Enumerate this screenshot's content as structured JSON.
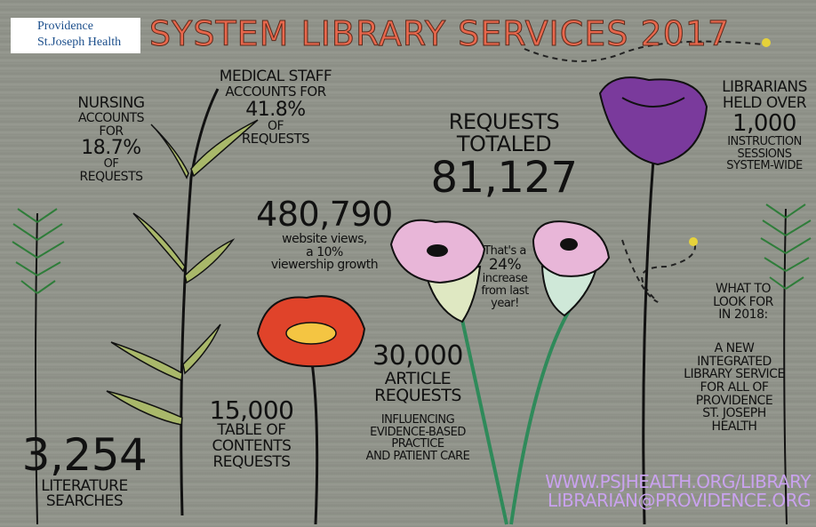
{
  "logo": {
    "line1": "Providence",
    "line2": "St.Joseph Health"
  },
  "title": "SYSTEM LIBRARY SERVICES 2017",
  "blocks": {
    "nursing": [
      "NURSING",
      "ACCOUNTS",
      "FOR",
      "18.7%",
      "OF",
      "REQUESTS"
    ],
    "medical": [
      "MEDICAL STAFF",
      "ACCOUNTS FOR",
      "41.8%",
      "OF",
      "REQUESTS"
    ],
    "website": [
      "480,790",
      "website views,",
      "a 10%",
      "viewership growth"
    ],
    "requests": [
      "REQUESTS",
      "TOTALED",
      "81,127"
    ],
    "increase": [
      "That's a",
      "24%",
      "increase",
      "from last",
      "year!"
    ],
    "librarians": [
      "LIBRARIANS",
      "HELD OVER",
      "1,000",
      "INSTRUCTION",
      "SESSIONS",
      "SYSTEM-WIDE"
    ],
    "articles": [
      "30,000",
      "ARTICLE",
      "REQUESTS"
    ],
    "influencing": [
      "INFLUENCING",
      "EVIDENCE-BASED",
      "PRACTICE",
      "AND PATIENT CARE"
    ],
    "toc": [
      "15,000",
      "TABLE OF",
      "CONTENTS",
      "REQUESTS"
    ],
    "literature": [
      "3,254",
      "LITERATURE",
      "SEARCHES"
    ],
    "future": [
      "WHAT TO",
      "LOOK FOR",
      "IN 2018:"
    ],
    "future_detail": [
      "A NEW",
      "INTEGRATED",
      "LIBRARY SERVICE",
      "FOR ALL OF",
      "PROVIDENCE",
      "ST. JOSEPH",
      "HEALTH"
    ],
    "links": [
      "WWW.PSJHEALTH.ORG/LIBRARY",
      "LIBRARIAN@PROVIDENCE.ORG"
    ]
  }
}
